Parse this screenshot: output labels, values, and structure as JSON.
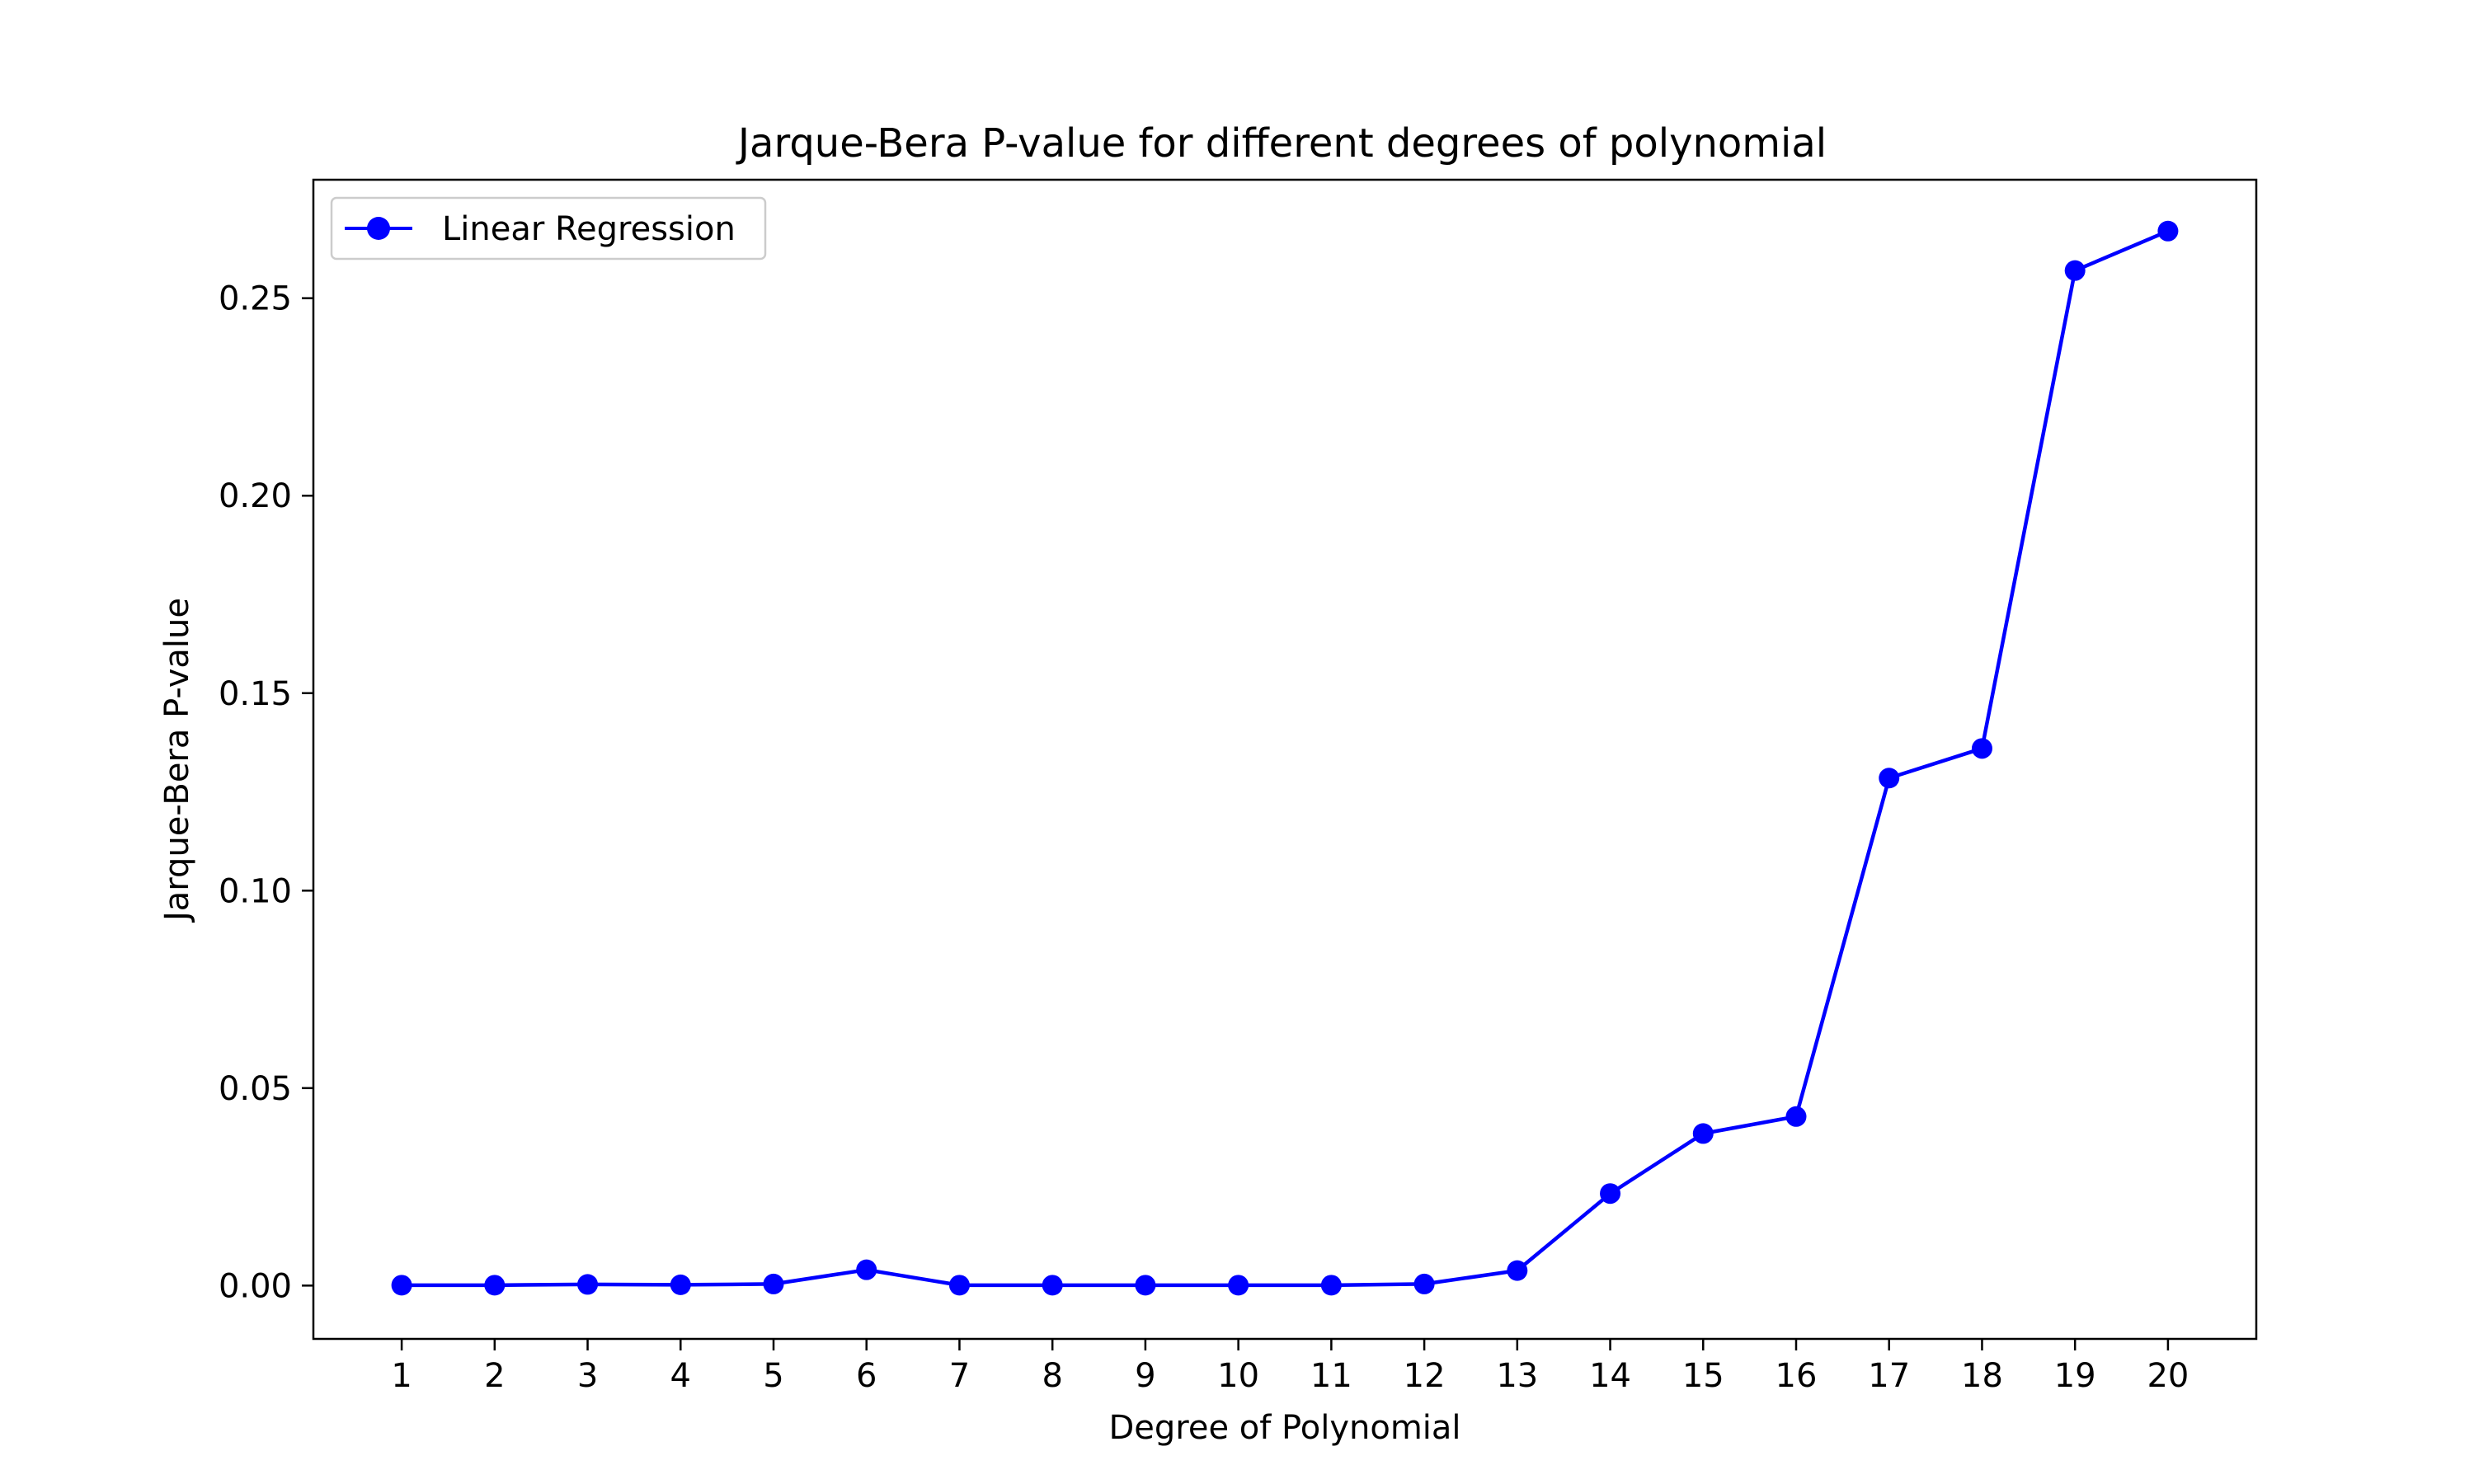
{
  "chart_data": {
    "type": "line",
    "title": "Jarque-Bera P-value for different degrees of polynomial",
    "xlabel": "Degree of Polynomial",
    "ylabel": "Jarque-Bera P-value",
    "x": [
      1,
      2,
      3,
      4,
      5,
      6,
      7,
      8,
      9,
      10,
      11,
      12,
      13,
      14,
      15,
      16,
      17,
      18,
      19,
      20
    ],
    "x_tick_labels": [
      "1",
      "2",
      "3",
      "4",
      "5",
      "6",
      "7",
      "8",
      "9",
      "10",
      "11",
      "12",
      "13",
      "14",
      "15",
      "16",
      "17",
      "18",
      "19",
      "20"
    ],
    "y_ticks": [
      0.0,
      0.05,
      0.1,
      0.15,
      0.2,
      0.25
    ],
    "y_tick_labels": [
      "0.00",
      "0.05",
      "0.10",
      "0.15",
      "0.20",
      "0.25"
    ],
    "xlim": [
      0.05,
      20.95
    ],
    "ylim": [
      -0.0135,
      0.28
    ],
    "grid": false,
    "legend_position": "top-left",
    "series": [
      {
        "name": "Linear Regression",
        "color": "#0000ff",
        "marker": "circle",
        "values": [
          0.0001,
          0.0001,
          0.0003,
          0.0002,
          0.0004,
          0.004,
          0.0001,
          0.0001,
          0.0001,
          0.0001,
          0.0001,
          0.0004,
          0.0038,
          0.0233,
          0.0385,
          0.0428,
          0.1285,
          0.136,
          0.257,
          0.267
        ]
      }
    ]
  }
}
